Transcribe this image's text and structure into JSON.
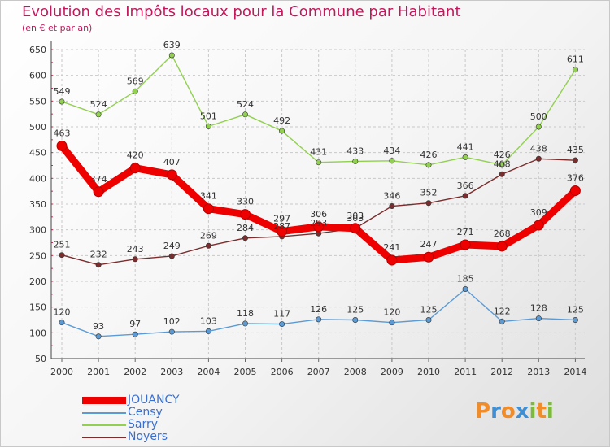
{
  "header": {
    "title": "Evolution des Impôts locaux pour la Commune par Habitant",
    "subtitle": "(en € et par an)"
  },
  "chart_data": {
    "type": "line",
    "title": "Evolution des Impôts locaux pour la Commune par Habitant",
    "subtitle": "(en € et par an)",
    "x": [
      "2000",
      "2001",
      "2002",
      "2003",
      "2004",
      "2005",
      "2006",
      "2007",
      "2008",
      "2009",
      "2010",
      "2011",
      "2012",
      "2013",
      "2014"
    ],
    "ylim": [
      50,
      650
    ],
    "yticks": [
      50,
      100,
      150,
      200,
      250,
      300,
      350,
      400,
      450,
      500,
      550,
      600,
      650
    ],
    "grid": true,
    "legend_position": "bottom-left",
    "series": [
      {
        "name": "JOUANCY",
        "color": "#ee0000",
        "emphasis": true,
        "values": [
          463,
          374,
          420,
          407,
          341,
          330,
          297,
          306,
          303,
          241,
          247,
          271,
          268,
          309,
          376
        ]
      },
      {
        "name": "Censy",
        "color": "#5b9bd5",
        "values": [
          120,
          93,
          97,
          102,
          103,
          118,
          117,
          126,
          125,
          120,
          125,
          185,
          122,
          128,
          125
        ]
      },
      {
        "name": "Sarry",
        "color": "#92d050",
        "values": [
          549,
          524,
          569,
          639,
          501,
          524,
          492,
          431,
          433,
          434,
          426,
          441,
          426,
          500,
          611
        ]
      },
      {
        "name": "Noyers",
        "color": "#7b2c2c",
        "values": [
          251,
          232,
          243,
          249,
          269,
          284,
          287,
          293,
          303,
          346,
          352,
          366,
          408,
          438,
          435
        ]
      }
    ]
  },
  "logo": {
    "letters": [
      "P",
      "r",
      "o",
      "x",
      "i",
      "t",
      "i"
    ],
    "colors": [
      "#f28c28",
      "#3e8fd4",
      "#f28c28",
      "#3e8fd4",
      "#7cbb3a",
      "#f28c28",
      "#7cbb3a"
    ]
  }
}
